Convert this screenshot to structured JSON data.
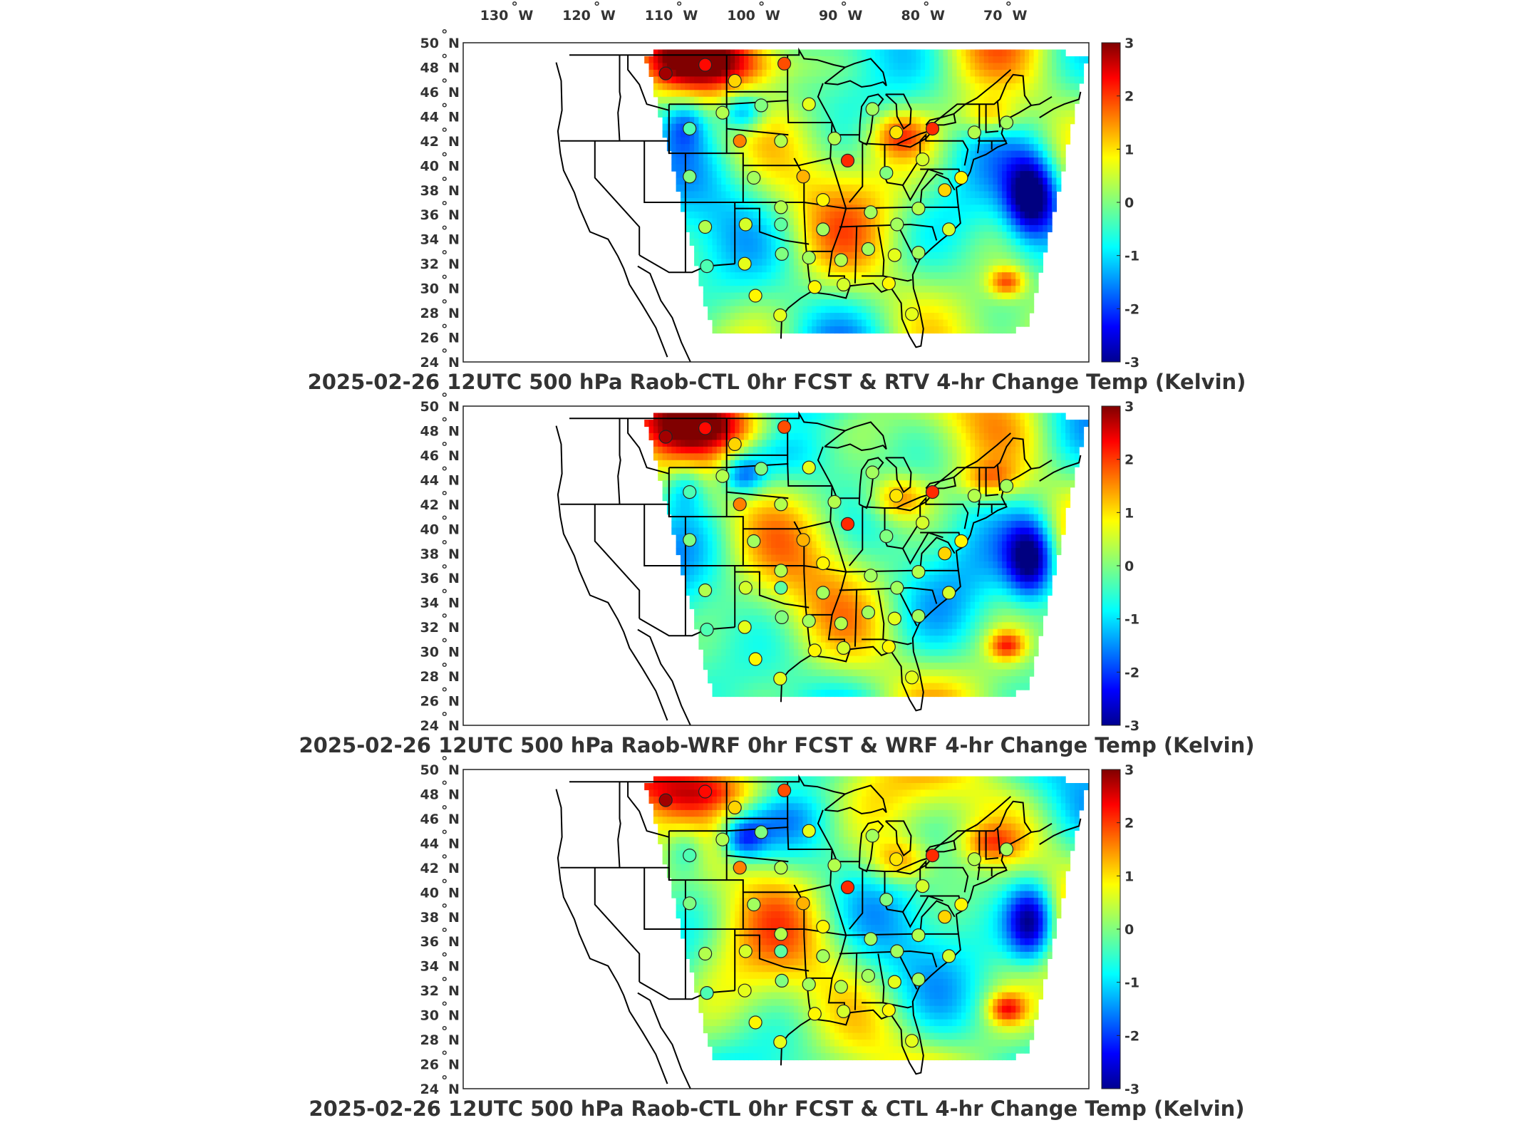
{
  "figure": {
    "lon_labels": [
      "130°W",
      "120°W",
      "110°W",
      "100°W",
      "90°W",
      "80°W",
      "70°W"
    ],
    "lon_degree_marks": [
      {
        "num": "130",
        "hemi": "W"
      },
      {
        "num": "120",
        "hemi": "W"
      },
      {
        "num": "110",
        "hemi": "W"
      },
      {
        "num": "100",
        "hemi": "W"
      },
      {
        "num": "90",
        "hemi": "W"
      },
      {
        "num": "80",
        "hemi": "W"
      },
      {
        "num": "70",
        "hemi": "W"
      }
    ],
    "lat_labels": [
      {
        "num": "50",
        "hemi": "N"
      },
      {
        "num": "48",
        "hemi": "N"
      },
      {
        "num": "46",
        "hemi": "N"
      },
      {
        "num": "44",
        "hemi": "N"
      },
      {
        "num": "42",
        "hemi": "N"
      },
      {
        "num": "40",
        "hemi": "N"
      },
      {
        "num": "38",
        "hemi": "N"
      },
      {
        "num": "36",
        "hemi": "N"
      },
      {
        "num": "34",
        "hemi": "N"
      },
      {
        "num": "32",
        "hemi": "N"
      },
      {
        "num": "30",
        "hemi": "N"
      },
      {
        "num": "28",
        "hemi": "N"
      },
      {
        "num": "26",
        "hemi": "N"
      },
      {
        "num": "24",
        "hemi": "N"
      }
    ],
    "colorbar": {
      "ticks": [
        "3",
        "2",
        "1",
        "0",
        "-1",
        "-2",
        "-3"
      ],
      "colormap": "jet",
      "range": [
        -3,
        3
      ]
    },
    "panels": [
      {
        "title": "2025-02-26 12UTC 500 hPa Raob-CTL 0hr FCST & RTV 4-hr Change Temp (Kelvin)",
        "variant": 0
      },
      {
        "title": "2025-02-26 12UTC 500 hPa Raob-WRF 0hr FCST & WRF 4-hr Change Temp (Kelvin)",
        "variant": 1
      },
      {
        "title": "2025-02-26 12UTC 500 hPa Raob-CTL 0hr FCST & CTL 4-hr Change Temp (Kelvin)",
        "variant": 2
      }
    ],
    "stations": [
      {
        "lon": -111.4,
        "lat": 47.5,
        "value": 2.8
      },
      {
        "lon": -106.6,
        "lat": 48.2,
        "value": 2.2
      },
      {
        "lon": -97.0,
        "lat": 48.3,
        "value": 1.8
      },
      {
        "lon": -103.0,
        "lat": 46.9,
        "value": 1.0
      },
      {
        "lon": -104.5,
        "lat": 44.3,
        "value": 0.3
      },
      {
        "lon": -108.5,
        "lat": 43.0,
        "value": -0.3
      },
      {
        "lon": -99.8,
        "lat": 44.9,
        "value": 0.0
      },
      {
        "lon": -94.0,
        "lat": 45.0,
        "value": 0.6
      },
      {
        "lon": -102.4,
        "lat": 42.0,
        "value": 1.5
      },
      {
        "lon": -97.4,
        "lat": 42.0,
        "value": 0.3
      },
      {
        "lon": -89.3,
        "lat": 40.4,
        "value": 2.0
      },
      {
        "lon": -90.9,
        "lat": 42.2,
        "value": 0.3
      },
      {
        "lon": -86.3,
        "lat": 44.6,
        "value": 0.2
      },
      {
        "lon": -83.4,
        "lat": 42.7,
        "value": 0.9
      },
      {
        "lon": -79.0,
        "lat": 43.0,
        "value": 2.0
      },
      {
        "lon": -73.9,
        "lat": 42.7,
        "value": 0.3
      },
      {
        "lon": -70.0,
        "lat": 43.5,
        "value": 0.2
      },
      {
        "lon": -80.2,
        "lat": 40.5,
        "value": 0.5
      },
      {
        "lon": -84.6,
        "lat": 39.4,
        "value": 0.0
      },
      {
        "lon": -77.5,
        "lat": 38.0,
        "value": 1.0
      },
      {
        "lon": -75.5,
        "lat": 39.0,
        "value": 0.8
      },
      {
        "lon": -94.7,
        "lat": 39.1,
        "value": 1.2
      },
      {
        "lon": -100.7,
        "lat": 39.0,
        "value": 0.2
      },
      {
        "lon": -108.5,
        "lat": 39.1,
        "value": 0.0
      },
      {
        "lon": -97.4,
        "lat": 36.6,
        "value": 0.3
      },
      {
        "lon": -101.7,
        "lat": 35.2,
        "value": 0.5
      },
      {
        "lon": -106.6,
        "lat": 35.0,
        "value": 0.3
      },
      {
        "lon": -97.4,
        "lat": 35.2,
        "value": -0.2
      },
      {
        "lon": -92.3,
        "lat": 37.2,
        "value": 0.8
      },
      {
        "lon": -92.3,
        "lat": 34.8,
        "value": 0.2
      },
      {
        "lon": -86.5,
        "lat": 36.2,
        "value": 0.2
      },
      {
        "lon": -83.3,
        "lat": 35.2,
        "value": 0.2
      },
      {
        "lon": -80.7,
        "lat": 36.5,
        "value": 0.3
      },
      {
        "lon": -77.0,
        "lat": 34.8,
        "value": 0.5
      },
      {
        "lon": -86.8,
        "lat": 33.2,
        "value": 0.2
      },
      {
        "lon": -83.6,
        "lat": 32.7,
        "value": 0.6
      },
      {
        "lon": -80.7,
        "lat": 32.9,
        "value": 0.2
      },
      {
        "lon": -90.1,
        "lat": 32.3,
        "value": 0.3
      },
      {
        "lon": -94.0,
        "lat": 32.5,
        "value": 0.2
      },
      {
        "lon": -97.3,
        "lat": 32.8,
        "value": 0.0
      },
      {
        "lon": -101.8,
        "lat": 32.0,
        "value": 0.6
      },
      {
        "lon": -106.4,
        "lat": 31.8,
        "value": -0.3
      },
      {
        "lon": -100.5,
        "lat": 29.4,
        "value": 0.8
      },
      {
        "lon": -97.5,
        "lat": 27.8,
        "value": 0.6
      },
      {
        "lon": -93.3,
        "lat": 30.1,
        "value": 0.8
      },
      {
        "lon": -89.8,
        "lat": 30.3,
        "value": 0.5
      },
      {
        "lon": -84.3,
        "lat": 30.4,
        "value": 0.8
      },
      {
        "lon": -81.5,
        "lat": 27.9,
        "value": 0.6
      }
    ]
  }
}
